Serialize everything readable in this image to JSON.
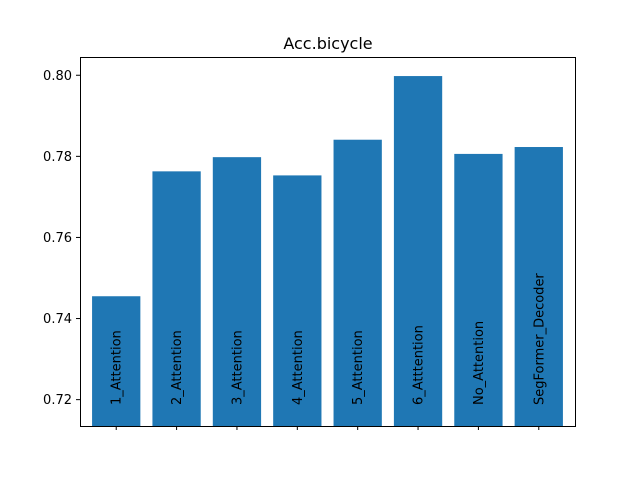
{
  "chart_data": {
    "type": "bar",
    "title": "Acc.bicycle",
    "xlabel": "",
    "ylabel": "",
    "categories": [
      "1_Attention",
      "2_Attention",
      "3_Attention",
      "4_Attention",
      "5_Attention",
      "6_Atttention",
      "No_Attention",
      "SegFormer_Decoder"
    ],
    "values": [
      0.7455,
      0.7763,
      0.7798,
      0.7753,
      0.7841,
      0.7998,
      0.7806,
      0.7823
    ],
    "bar_labels": [
      "1_Attention",
      "2_Attention",
      "3_Attention",
      "4_Attention",
      "5_Attention",
      "6_Atttention",
      "No_Attention",
      "SegFormer_Decoder"
    ],
    "ylim": [
      0.7135,
      0.8045
    ],
    "yticks": [
      0.72,
      0.74,
      0.76,
      0.78,
      0.8
    ],
    "ytick_labels": [
      "0.72",
      "0.74",
      "0.76",
      "0.78",
      "0.80"
    ],
    "show_xtick_labels": false,
    "grid": false,
    "legend": "none",
    "bar_color": "#1f77b4"
  }
}
